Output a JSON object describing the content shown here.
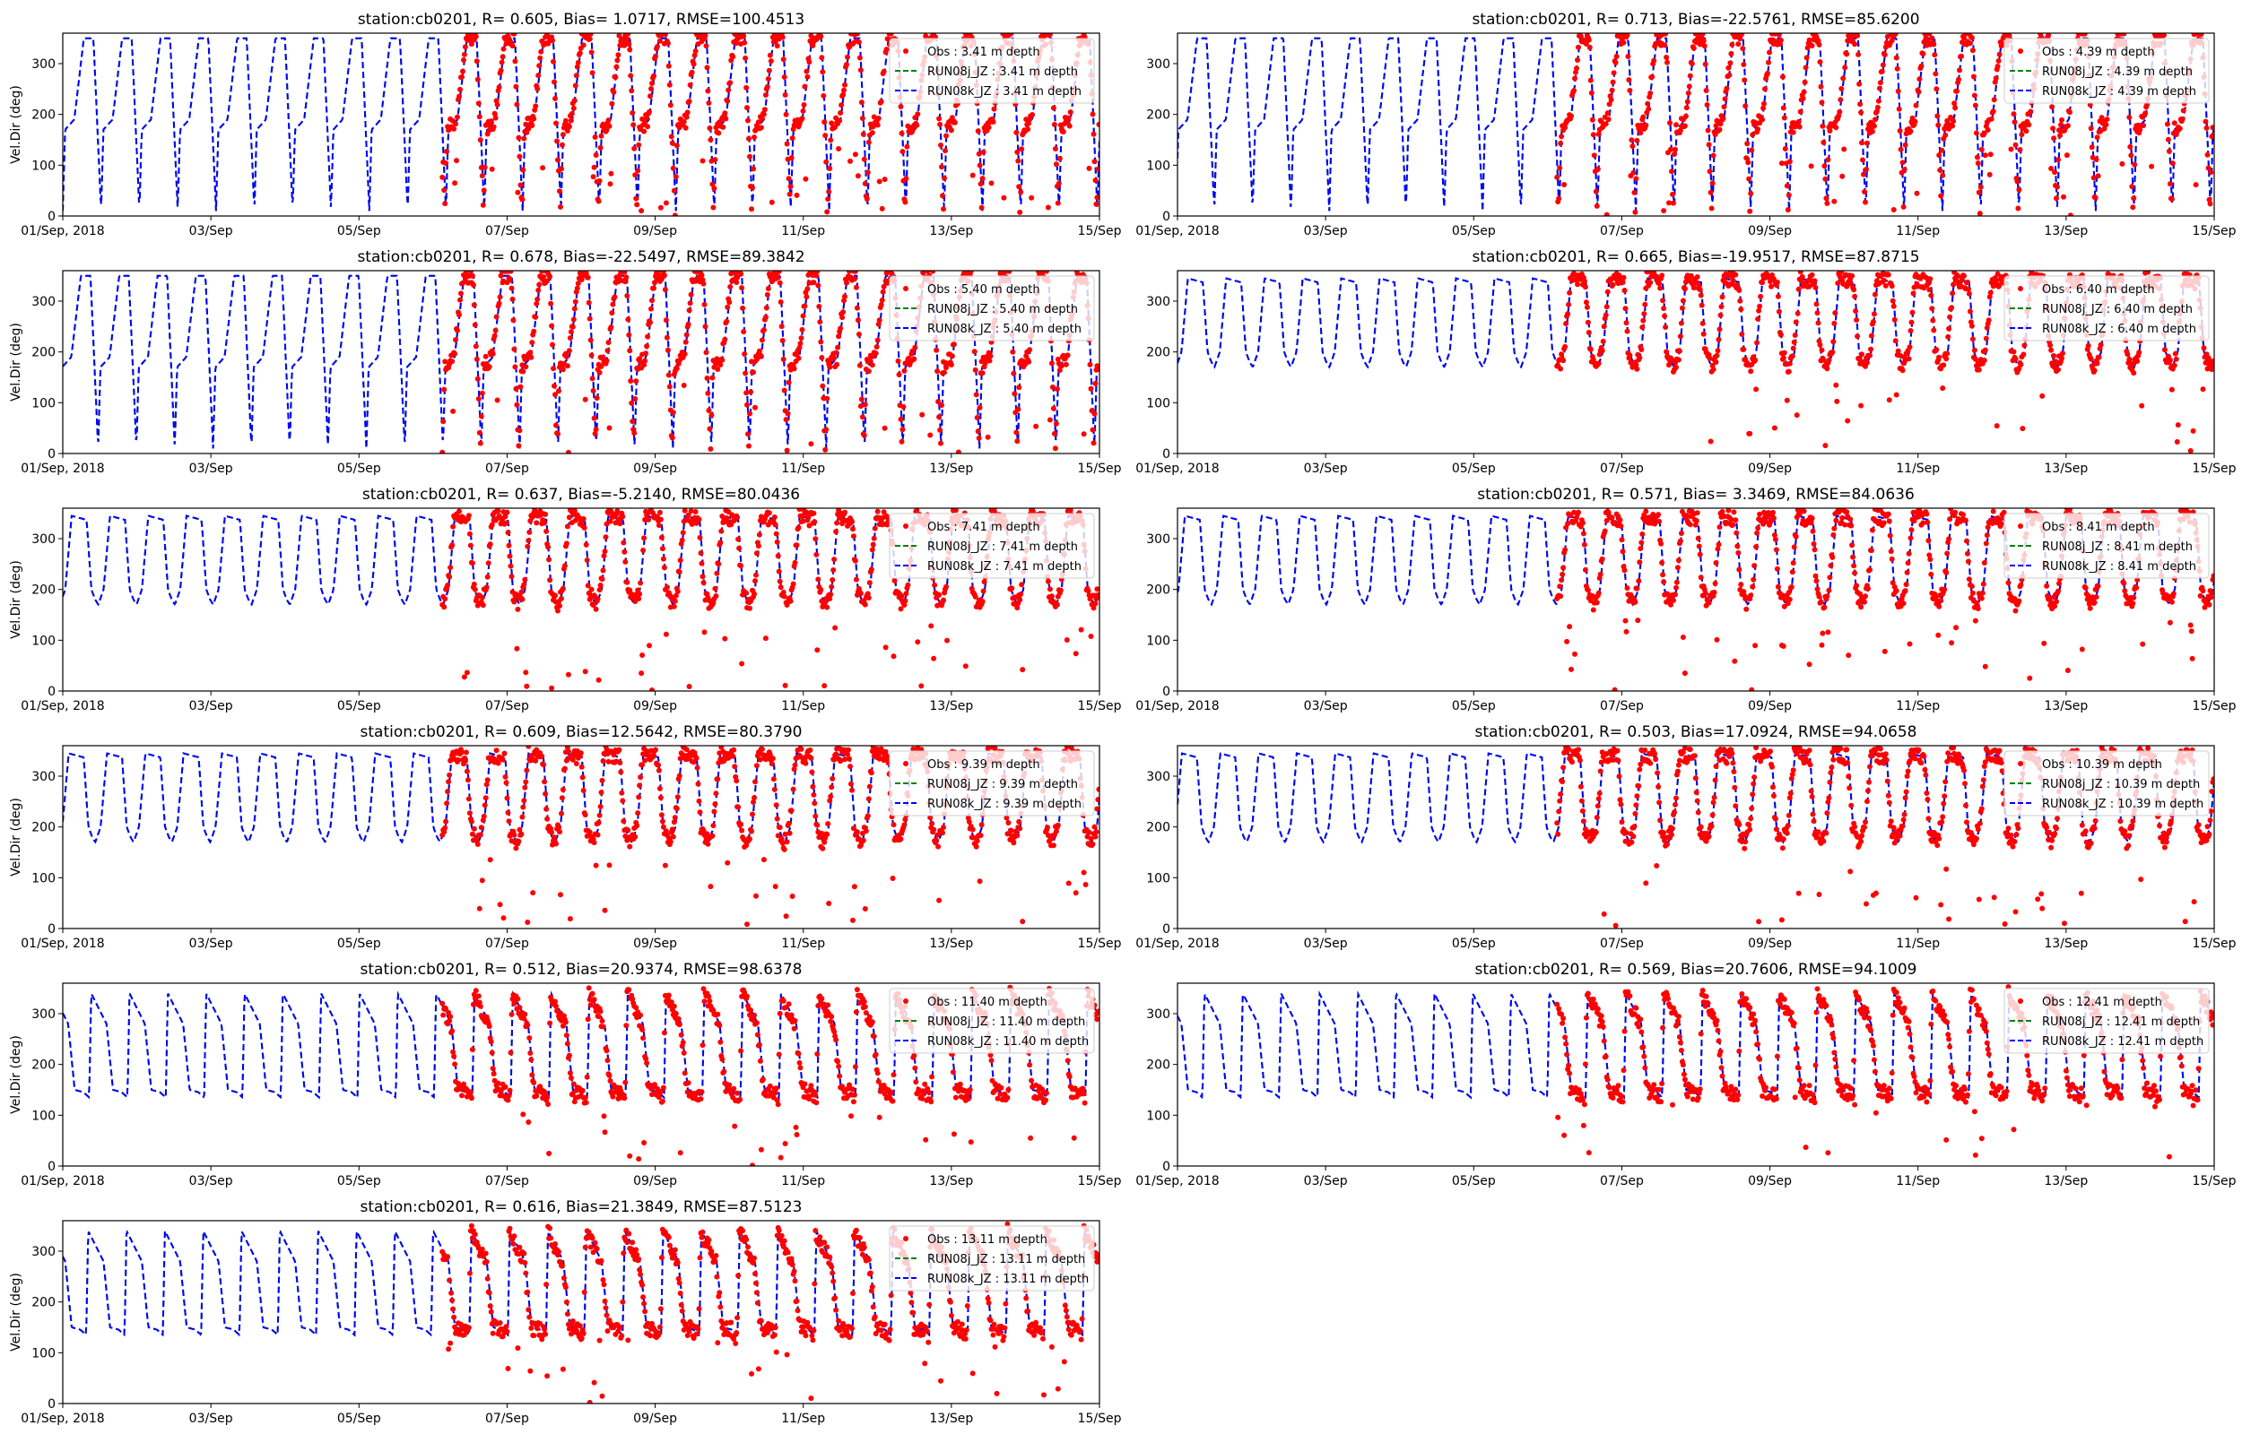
{
  "chart_data": [
    {
      "type": "scatter",
      "title": "station:cb0201, R= 0.605, Bias= 1.0717, RMSE=100.4513",
      "ylabel": "Vel.Dir (deg)",
      "xlabel": "",
      "x_range": [
        "2018-09-01",
        "2018-09-15"
      ],
      "ylim": [
        0,
        360
      ],
      "x_tick_labels": [
        "01/Sep, 2018",
        "03/Sep",
        "05/Sep",
        "07/Sep",
        "09/Sep",
        "11/Sep",
        "13/Sep",
        "15/Sep"
      ],
      "y_tick_labels": [
        "0",
        "100",
        "200",
        "300"
      ],
      "legend_position": "upper right",
      "series": [
        {
          "name": "Obs : 3.41 m depth",
          "color": "#ff0000",
          "style": "dots",
          "x_start": "2018-09-06T03:00",
          "pattern": "sawtooth"
        },
        {
          "name": "RUN08j_JZ : 3.41 m depth",
          "color": "#008000",
          "style": "dashed",
          "pattern": "sawtooth"
        },
        {
          "name": "RUN08k_JZ : 3.41 m depth",
          "color": "#0000ff",
          "style": "dashed",
          "pattern": "sawtooth"
        }
      ]
    },
    {
      "type": "scatter",
      "title": "station:cb0201, R= 0.713, Bias=-22.5761, RMSE=85.6200",
      "ylabel": "",
      "xlabel": "",
      "x_range": [
        "2018-09-01",
        "2018-09-15"
      ],
      "ylim": [
        0,
        360
      ],
      "x_tick_labels": [
        "01/Sep, 2018",
        "03/Sep",
        "05/Sep",
        "07/Sep",
        "09/Sep",
        "11/Sep",
        "13/Sep",
        "15/Sep"
      ],
      "y_tick_labels": [
        "0",
        "100",
        "200",
        "300"
      ],
      "legend_position": "upper right",
      "series": [
        {
          "name": "Obs : 4.39 m depth",
          "color": "#ff0000",
          "style": "dots",
          "x_start": "2018-09-06T03:00",
          "pattern": "sawtooth"
        },
        {
          "name": "RUN08j_JZ : 4.39 m depth",
          "color": "#008000",
          "style": "dashed",
          "pattern": "sawtooth"
        },
        {
          "name": "RUN08k_JZ : 4.39 m depth",
          "color": "#0000ff",
          "style": "dashed",
          "pattern": "sawtooth"
        }
      ]
    },
    {
      "type": "scatter",
      "title": "station:cb0201, R= 0.678, Bias=-22.5497, RMSE=89.3842",
      "ylabel": "Vel.Dir (deg)",
      "xlabel": "",
      "x_range": [
        "2018-09-01",
        "2018-09-15"
      ],
      "ylim": [
        0,
        360
      ],
      "x_tick_labels": [
        "01/Sep, 2018",
        "03/Sep",
        "05/Sep",
        "07/Sep",
        "09/Sep",
        "11/Sep",
        "13/Sep",
        "15/Sep"
      ],
      "y_tick_labels": [
        "0",
        "100",
        "200",
        "300"
      ],
      "legend_position": "upper right",
      "series": [
        {
          "name": "Obs : 5.40 m depth",
          "color": "#ff0000",
          "style": "dots",
          "x_start": "2018-09-06T03:00",
          "pattern": "sawtooth"
        },
        {
          "name": "RUN08j_JZ : 5.40 m depth",
          "color": "#008000",
          "style": "dashed",
          "pattern": "sawtooth"
        },
        {
          "name": "RUN08k_JZ : 5.40 m depth",
          "color": "#0000ff",
          "style": "dashed",
          "pattern": "sawtooth"
        }
      ]
    },
    {
      "type": "scatter",
      "title": "station:cb0201, R= 0.665, Bias=-19.9517, RMSE=87.8715",
      "ylabel": "",
      "xlabel": "",
      "x_range": [
        "2018-09-01",
        "2018-09-15"
      ],
      "ylim": [
        0,
        360
      ],
      "x_tick_labels": [
        "01/Sep, 2018",
        "03/Sep",
        "05/Sep",
        "07/Sep",
        "09/Sep",
        "11/Sep",
        "13/Sep",
        "15/Sep"
      ],
      "y_tick_labels": [
        "0",
        "100",
        "200",
        "300"
      ],
      "legend_position": "upper right",
      "series": [
        {
          "name": "Obs : 6.40 m depth",
          "color": "#ff0000",
          "style": "dots",
          "x_start": "2018-09-06T03:00",
          "pattern": "plateau"
        },
        {
          "name": "RUN08j_JZ : 6.40 m depth",
          "color": "#008000",
          "style": "dashed",
          "pattern": "plateau"
        },
        {
          "name": "RUN08k_JZ : 6.40 m depth",
          "color": "#0000ff",
          "style": "dashed",
          "pattern": "plateau"
        }
      ]
    },
    {
      "type": "scatter",
      "title": "station:cb0201, R= 0.637, Bias=-5.2140, RMSE=80.0436",
      "ylabel": "Vel.Dir (deg)",
      "xlabel": "",
      "x_range": [
        "2018-09-01",
        "2018-09-15"
      ],
      "ylim": [
        0,
        360
      ],
      "x_tick_labels": [
        "01/Sep, 2018",
        "03/Sep",
        "05/Sep",
        "07/Sep",
        "09/Sep",
        "11/Sep",
        "13/Sep",
        "15/Sep"
      ],
      "y_tick_labels": [
        "0",
        "100",
        "200",
        "300"
      ],
      "legend_position": "upper right",
      "series": [
        {
          "name": "Obs : 7.41 m depth",
          "color": "#ff0000",
          "style": "dots",
          "x_start": "2018-09-06T03:00",
          "pattern": "plateau"
        },
        {
          "name": "RUN08j_JZ : 7.41 m depth",
          "color": "#008000",
          "style": "dashed",
          "pattern": "plateau"
        },
        {
          "name": "RUN08k_JZ : 7.41 m depth",
          "color": "#0000ff",
          "style": "dashed",
          "pattern": "plateau"
        }
      ]
    },
    {
      "type": "scatter",
      "title": "station:cb0201, R= 0.571, Bias= 3.3469, RMSE=84.0636",
      "ylabel": "",
      "xlabel": "",
      "x_range": [
        "2018-09-01",
        "2018-09-15"
      ],
      "ylim": [
        0,
        360
      ],
      "x_tick_labels": [
        "01/Sep, 2018",
        "03/Sep",
        "05/Sep",
        "07/Sep",
        "09/Sep",
        "11/Sep",
        "13/Sep",
        "15/Sep"
      ],
      "y_tick_labels": [
        "0",
        "100",
        "200",
        "300"
      ],
      "legend_position": "upper right",
      "series": [
        {
          "name": "Obs : 8.41 m depth",
          "color": "#ff0000",
          "style": "dots",
          "x_start": "2018-09-06T03:00",
          "pattern": "plateau"
        },
        {
          "name": "RUN08j_JZ : 8.41 m depth",
          "color": "#008000",
          "style": "dashed",
          "pattern": "plateau"
        },
        {
          "name": "RUN08k_JZ : 8.41 m depth",
          "color": "#0000ff",
          "style": "dashed",
          "pattern": "plateau"
        }
      ]
    },
    {
      "type": "scatter",
      "title": "station:cb0201, R= 0.609, Bias=12.5642, RMSE=80.3790",
      "ylabel": "Vel.Dir (deg)",
      "xlabel": "",
      "x_range": [
        "2018-09-01",
        "2018-09-15"
      ],
      "ylim": [
        0,
        360
      ],
      "x_tick_labels": [
        "01/Sep, 2018",
        "03/Sep",
        "05/Sep",
        "07/Sep",
        "09/Sep",
        "11/Sep",
        "13/Sep",
        "15/Sep"
      ],
      "y_tick_labels": [
        "0",
        "100",
        "200",
        "300"
      ],
      "legend_position": "upper right",
      "series": [
        {
          "name": "Obs : 9.39 m depth",
          "color": "#ff0000",
          "style": "dots",
          "x_start": "2018-09-06T03:00",
          "pattern": "plateau"
        },
        {
          "name": "RUN08j_JZ : 9.39 m depth",
          "color": "#008000",
          "style": "dashed",
          "pattern": "plateau"
        },
        {
          "name": "RUN08k_JZ : 9.39 m depth",
          "color": "#0000ff",
          "style": "dashed",
          "pattern": "plateau"
        }
      ]
    },
    {
      "type": "scatter",
      "title": "station:cb0201, R= 0.503, Bias=17.0924, RMSE=94.0658",
      "ylabel": "",
      "xlabel": "",
      "x_range": [
        "2018-09-01",
        "2018-09-15"
      ],
      "ylim": [
        0,
        360
      ],
      "x_tick_labels": [
        "01/Sep, 2018",
        "03/Sep",
        "05/Sep",
        "07/Sep",
        "09/Sep",
        "11/Sep",
        "13/Sep",
        "15/Sep"
      ],
      "y_tick_labels": [
        "0",
        "100",
        "200",
        "300"
      ],
      "legend_position": "upper right",
      "series": [
        {
          "name": "Obs : 10.39 m depth",
          "color": "#ff0000",
          "style": "dots",
          "x_start": "2018-09-06T03:00",
          "pattern": "plateau"
        },
        {
          "name": "RUN08j_JZ : 10.39 m depth",
          "color": "#008000",
          "style": "dashed",
          "pattern": "plateau"
        },
        {
          "name": "RUN08k_JZ : 10.39 m depth",
          "color": "#0000ff",
          "style": "dashed",
          "pattern": "plateau"
        }
      ]
    },
    {
      "type": "scatter",
      "title": "station:cb0201, R= 0.512, Bias=20.9374, RMSE=98.6378",
      "ylabel": "Vel.Dir (deg)",
      "xlabel": "",
      "x_range": [
        "2018-09-01",
        "2018-09-15"
      ],
      "ylim": [
        0,
        360
      ],
      "x_tick_labels": [
        "01/Sep, 2018",
        "03/Sep",
        "05/Sep",
        "07/Sep",
        "09/Sep",
        "11/Sep",
        "13/Sep",
        "15/Sep"
      ],
      "y_tick_labels": [
        "0",
        "100",
        "200",
        "300"
      ],
      "legend_position": "upper right",
      "series": [
        {
          "name": "Obs : 11.40 m depth",
          "color": "#ff0000",
          "style": "dots",
          "x_start": "2018-09-06T03:00",
          "pattern": "decay"
        },
        {
          "name": "RUN08j_JZ : 11.40 m depth",
          "color": "#008000",
          "style": "dashed",
          "pattern": "decay"
        },
        {
          "name": "RUN08k_JZ : 11.40 m depth",
          "color": "#0000ff",
          "style": "dashed",
          "pattern": "decay"
        }
      ]
    },
    {
      "type": "scatter",
      "title": "station:cb0201, R= 0.569, Bias=20.7606, RMSE=94.1009",
      "ylabel": "",
      "xlabel": "",
      "x_range": [
        "2018-09-01",
        "2018-09-15"
      ],
      "ylim": [
        0,
        360
      ],
      "x_tick_labels": [
        "01/Sep, 2018",
        "03/Sep",
        "05/Sep",
        "07/Sep",
        "09/Sep",
        "11/Sep",
        "13/Sep",
        "15/Sep"
      ],
      "y_tick_labels": [
        "0",
        "100",
        "200",
        "300"
      ],
      "legend_position": "upper right",
      "series": [
        {
          "name": "Obs : 12.41 m depth",
          "color": "#ff0000",
          "style": "dots",
          "x_start": "2018-09-06T03:00",
          "pattern": "decay"
        },
        {
          "name": "RUN08j_JZ : 12.41 m depth",
          "color": "#008000",
          "style": "dashed",
          "pattern": "decay"
        },
        {
          "name": "RUN08k_JZ : 12.41 m depth",
          "color": "#0000ff",
          "style": "dashed",
          "pattern": "decay"
        }
      ]
    },
    {
      "type": "scatter",
      "title": "station:cb0201, R= 0.616, Bias=21.3849, RMSE=87.5123",
      "ylabel": "Vel.Dir (deg)",
      "xlabel": "",
      "x_range": [
        "2018-09-01",
        "2018-09-15"
      ],
      "ylim": [
        0,
        360
      ],
      "x_tick_labels": [
        "01/Sep, 2018",
        "03/Sep",
        "05/Sep",
        "07/Sep",
        "09/Sep",
        "11/Sep",
        "13/Sep",
        "15/Sep"
      ],
      "y_tick_labels": [
        "0",
        "100",
        "200",
        "300"
      ],
      "legend_position": "upper right",
      "series": [
        {
          "name": "Obs : 13.11 m depth",
          "color": "#ff0000",
          "style": "dots",
          "x_start": "2018-09-06T03:00",
          "pattern": "decay"
        },
        {
          "name": "RUN08j_JZ : 13.11 m depth",
          "color": "#008000",
          "style": "dashed",
          "pattern": "decay"
        },
        {
          "name": "RUN08k_JZ : 13.11 m depth",
          "color": "#0000ff",
          "style": "dashed",
          "pattern": "decay"
        }
      ]
    }
  ]
}
